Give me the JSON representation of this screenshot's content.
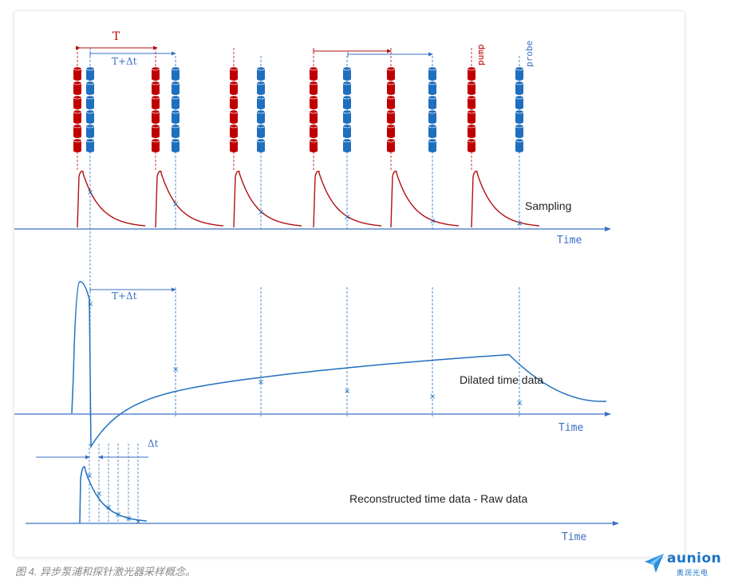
{
  "labels": {
    "period": "T",
    "period_plus_delta_top": "T+Δt",
    "pump": "pump",
    "probe": "probe",
    "sampling": "Sampling",
    "time_axis_1": "Time",
    "period_plus_delta_mid": "T+Δt",
    "dilated": "Dilated time data",
    "time_axis_2": "Time",
    "delta_t": "Δt",
    "reconstructed": "Reconstructed time data - Raw data",
    "time_axis_3": "Time"
  },
  "caption": "图 4. 异步泵浦和探针激光器采样概念。",
  "logo": {
    "word": "aunion",
    "sub": "奥润光电"
  },
  "colors": {
    "pump": "#c00000",
    "probe": "#1f6fbf",
    "arrow": "#3a6fc4",
    "curve_red": "#b01010",
    "curve_blue": "#1f6fbf"
  }
}
